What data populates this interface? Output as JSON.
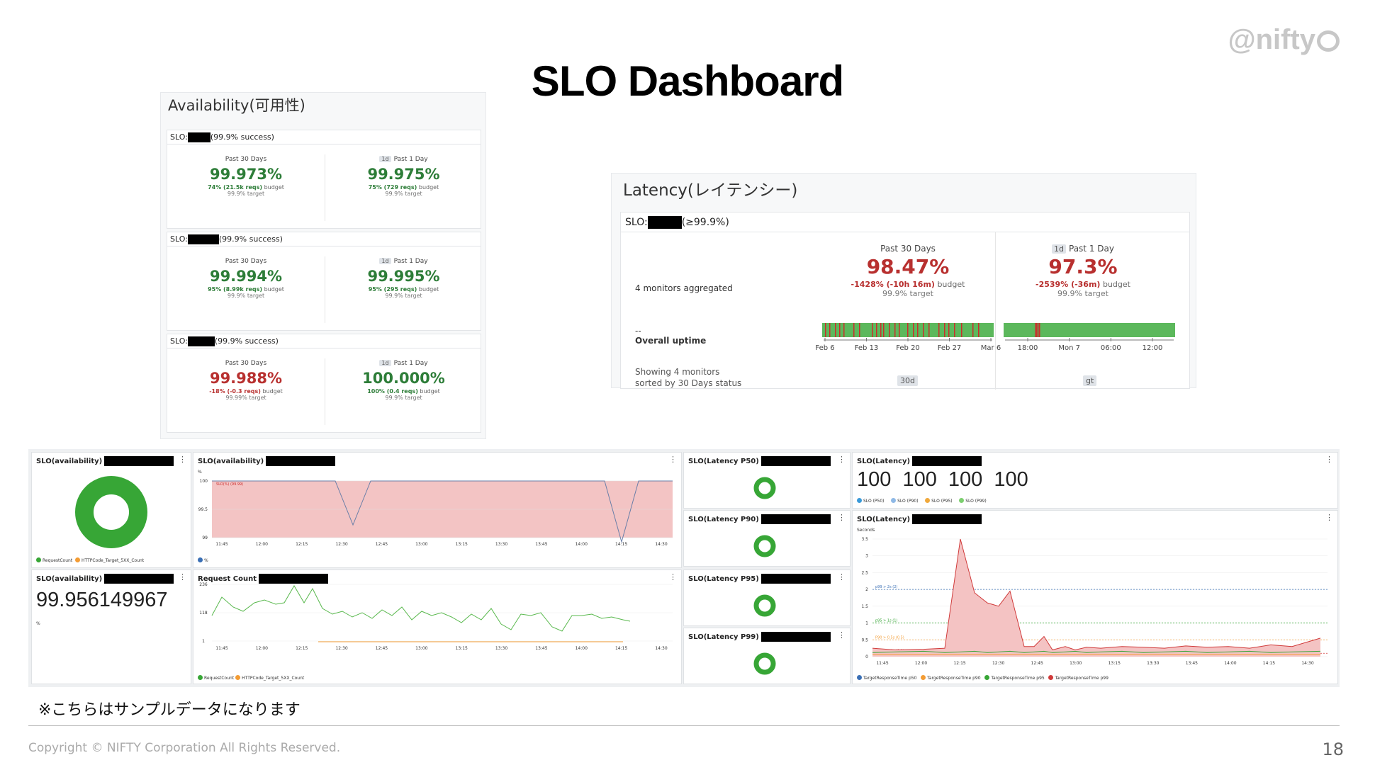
{
  "page": {
    "title": "SLO Dashboard",
    "logo": "@nifty",
    "note": "※こちらはサンプルデータになります",
    "copyright": "Copyright © NIFTY Corporation All Rights Reserved.",
    "page_number": "18"
  },
  "availability": {
    "title": "Availability(可用性)",
    "slos": [
      {
        "prefix": "SLO:",
        "suffix": "(99.9% success)",
        "past30": {
          "label": "Past 30 Days",
          "value": "99.973%",
          "status": "green",
          "budget_pct": "74% (21.5k reqs)",
          "budget_word": "budget",
          "target": "99.9% target"
        },
        "past1": {
          "tag": "1d",
          "label": "Past 1 Day",
          "value": "99.975%",
          "status": "green",
          "budget_pct": "75% (729 reqs)",
          "budget_word": "budget",
          "target": "99.9% target"
        }
      },
      {
        "prefix": "SLO:",
        "suffix": "(99.9% success)",
        "past30": {
          "label": "Past 30 Days",
          "value": "99.994%",
          "status": "green",
          "budget_pct": "95% (8.99k reqs)",
          "budget_word": "budget",
          "target": "99.9% target"
        },
        "past1": {
          "tag": "1d",
          "label": "Past 1 Day",
          "value": "99.995%",
          "status": "green",
          "budget_pct": "95% (295 reqs)",
          "budget_word": "budget",
          "target": "99.9% target"
        }
      },
      {
        "prefix": "SLO:",
        "suffix": "(99.9% success)",
        "past30": {
          "label": "Past 30 Days",
          "value": "99.988%",
          "status": "red",
          "budget_pct": "-18% (-0.3 reqs)",
          "budget_word": "budget",
          "target": "99.99% target"
        },
        "past1": {
          "tag": "1d",
          "label": "Past 1 Day",
          "value": "100.000%",
          "status": "green",
          "budget_pct": "100% (0.4 reqs)",
          "budget_word": "budget",
          "target": "99.9% target"
        }
      }
    ]
  },
  "latency": {
    "title": "Latency(レイテンシー)",
    "slo_prefix": "SLO:",
    "slo_suffix": "(≥99.9%)",
    "monitors": "4 monitors aggregated",
    "dash": "--",
    "overall": "Overall uptime",
    "showing": "Showing 4 monitors",
    "sorted": "sorted by 30 Days status",
    "past30": {
      "label": "Past 30 Days",
      "value": "98.47%",
      "budget_pct": "-1428% (-10h 16m)",
      "budget_word": "budget",
      "target": "99.9% target",
      "axis": [
        "Feb 6",
        "Feb 13",
        "Feb 20",
        "Feb 27",
        "Mar 6"
      ],
      "chip": "30d"
    },
    "past1": {
      "tag": "1d",
      "label": "Past 1 Day",
      "value": "97.3%",
      "budget_pct": "-2539% (-36m)",
      "budget_word": "budget",
      "target": "99.9% target",
      "axis": [
        "18:00",
        "Mon 7",
        "06:00",
        "12:00"
      ],
      "chip": "gt"
    },
    "colors": {
      "ok": "#5cb85c",
      "bad": "#c9302c"
    }
  },
  "grafana": {
    "donut": {
      "title": "SLO(availability)",
      "legend": [
        "RequestCount",
        "HTTPCode_Target_5XX_Count"
      ],
      "colors": [
        "#37a636",
        "#f39c34"
      ]
    },
    "stat": {
      "title": "SLO(availability)",
      "value": "99.956149967",
      "unit": "%"
    },
    "avail_chart": {
      "title": "SLO(availability)",
      "unit": "%",
      "series_label": "SLO(%) (99.99)",
      "y_ticks": [
        "100",
        "99.5",
        "99"
      ],
      "legend": "%"
    },
    "req_chart": {
      "title": "Request Count",
      "y_ticks": [
        "236",
        "118",
        "1"
      ],
      "legend": [
        "RequestCount",
        "HTTPCode_Target_5XX_Count"
      ]
    },
    "time_ticks": [
      "11:45",
      "12:00",
      "12:15",
      "12:30",
      "12:45",
      "13:00",
      "13:15",
      "13:30",
      "13:45",
      "14:00",
      "14:15",
      "14:30"
    ],
    "rings": [
      {
        "title": "SLO(Latency P50)"
      },
      {
        "title": "SLO(Latency P90)"
      },
      {
        "title": "SLO(Latency P95)"
      },
      {
        "title": "SLO(Latency P99)"
      }
    ],
    "lat_stat": {
      "title": "SLO(Latency)",
      "values": [
        "100",
        "100",
        "100",
        "100"
      ],
      "legend": [
        "SLO (P50)",
        "SLO (P90)",
        "SLO (P95)",
        "SLO (P99)"
      ],
      "colors": [
        "#3a9ad9",
        "#8fb9e6",
        "#f0a93c",
        "#7ccf6f"
      ]
    },
    "lat_chart": {
      "title": "SLO(Latency)",
      "unit": "Seconds",
      "y_ticks": [
        "3.5",
        "3",
        "2.5",
        "2",
        "1.5",
        "1",
        "0.5",
        "0"
      ],
      "thresholds": [
        "p99 > 2s (2)",
        "p95 > 1s (1)",
        "P90 > 0.5s (0.5)",
        "P50 > 0.1s (0.1)"
      ],
      "time_ticks": [
        "11:45",
        "12:00",
        "12:15",
        "12:30",
        "12:45",
        "13:00",
        "13:15",
        "13:30",
        "13:45",
        "14:00",
        "14:15",
        "14:30"
      ],
      "legend": [
        "TargetResponseTime p50",
        "TargetResponseTime p90",
        "TargetResponseTime p95",
        "TargetResponseTime p99"
      ],
      "colors": [
        "#3a6fb5",
        "#f39c34",
        "#37a636",
        "#d03a3a"
      ]
    }
  }
}
